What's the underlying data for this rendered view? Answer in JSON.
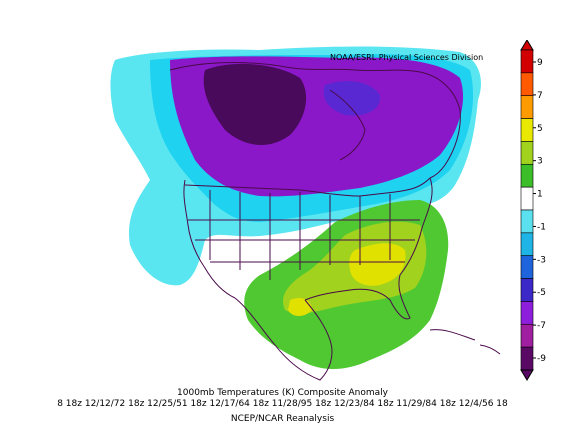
{
  "credit": "NOAA/ESRL Physical Sciences Division",
  "caption": {
    "title": "1000mb Temperatures (K)    Composite Anomaly",
    "dates": "8 18z 12/12/72 18z 12/25/51 18z 12/17/64 18z 11/28/95 18z 12/23/84 18z 11/29/84 18z 12/4/56 18",
    "source": "NCEP/NCAR Reanalysis"
  },
  "colorbar": {
    "labels": [
      "9",
      "7",
      "5",
      "3",
      "1",
      "-1",
      "-3",
      "-5",
      "-7",
      "-9"
    ],
    "colors": [
      "#d20000",
      "#ff5a00",
      "#ff9b00",
      "#e8e800",
      "#a0d21e",
      "#3cbe28",
      "#ffffff",
      "#5be0f0",
      "#1eb4e6",
      "#1e64dc",
      "#3c28c8",
      "#8c1edc",
      "#a01ea0",
      "#5a0a64"
    ]
  },
  "anomaly_colors": {
    "strong_cold": "#4a0a5c",
    "cold": "#8b18c8",
    "moderate_cold": "#5a28d2",
    "cool": "#1ed2f0",
    "cool_edge": "#5ae6f0",
    "warm": "#50c832",
    "warmer": "#a0d21e",
    "warmest": "#e1e100"
  }
}
